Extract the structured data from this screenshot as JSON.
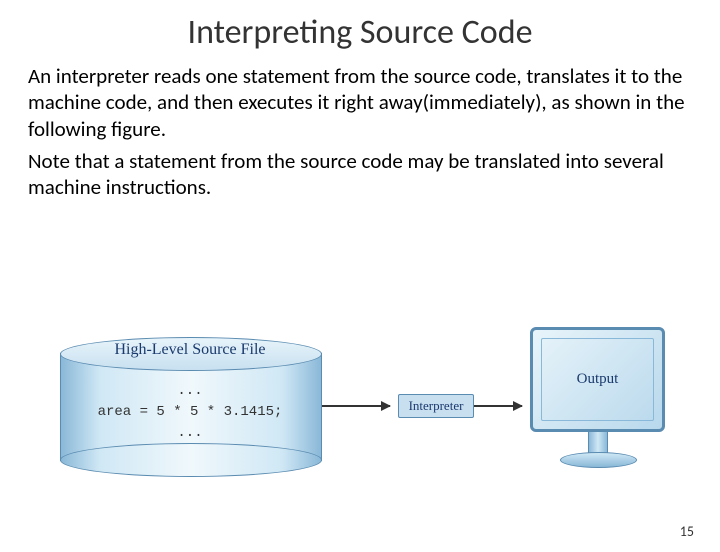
{
  "title": "Interpreting Source Code",
  "paragraph1": "An interpreter reads one statement from the source code, translates it to the machine code, and then executes it right away(immediately), as shown in the following figure.",
  "paragraph2": "Note that a statement from the source code may be translated into several machine instructions.",
  "diagram": {
    "type": "flowchart",
    "source_file": {
      "label": "High-Level Source File",
      "code_dots_top": "...",
      "code_line": "area = 5 * 5 * 3.1415;",
      "code_dots_bottom": "...",
      "fill_gradient": [
        "#8ab8d8",
        "#d0e8f5",
        "#f0f8fc"
      ],
      "border_color": "#5a8bb0",
      "label_color": "#1a3a6e",
      "label_font": "Times New Roman",
      "label_fontsize": 16,
      "code_font": "Courier New",
      "code_fontsize": 14
    },
    "interpreter": {
      "label": "Interpreter",
      "fill": "#c8dff0",
      "border_color": "#5a8bb0",
      "text_color": "#1a3a6e",
      "fontsize": 13
    },
    "output": {
      "label": "Output",
      "screen_gradient": [
        "#e8f4fa",
        "#b8d8ec"
      ],
      "border_color": "#5a8bb0",
      "text_color": "#1a3a6e",
      "fontsize": 15
    },
    "arrows": {
      "color": "#333333",
      "width": 2
    }
  },
  "page_number": "15"
}
